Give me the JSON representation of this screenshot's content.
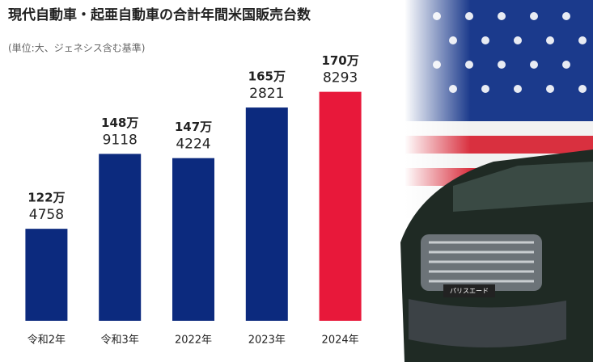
{
  "chart_data": {
    "type": "bar",
    "title": "現代自動車・起亜自動車の合計年間米国販売台数",
    "subtitle": "(単位:大、ジェネシス含む基準)",
    "categories": [
      "令和2年",
      "令和3年",
      "2022年",
      "2023年",
      "2024年"
    ],
    "values": [
      1224758,
      1489118,
      1474224,
      1652821,
      1708293
    ],
    "value_labels": [
      [
        "122万",
        "4758"
      ],
      [
        "148万",
        "9118"
      ],
      [
        "147万",
        "4224"
      ],
      [
        "165万",
        "2821"
      ],
      [
        "170万",
        "8293"
      ]
    ],
    "colors": [
      "#0c2a7e",
      "#0c2a7e",
      "#0c2a7e",
      "#0c2a7e",
      "#e8183a"
    ],
    "ylim": [
      900000,
      1750000
    ],
    "badge": "パリスエード"
  }
}
